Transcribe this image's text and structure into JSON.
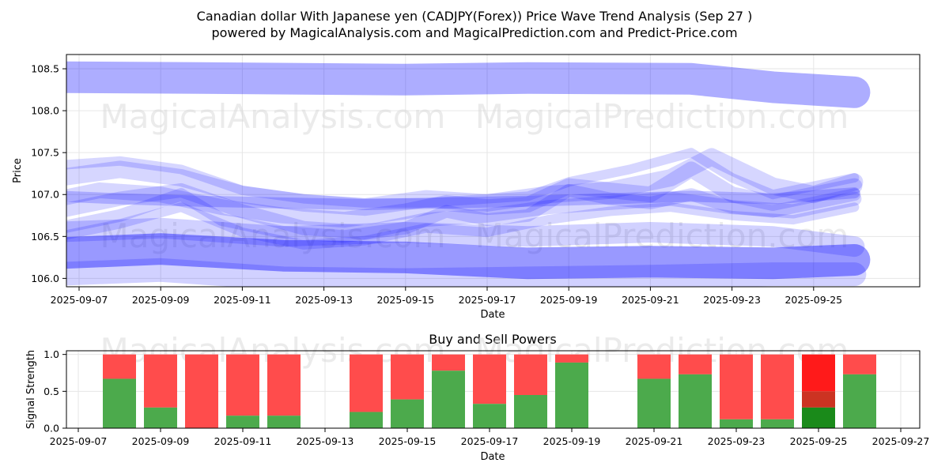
{
  "header": {
    "title_line1": "Canadian dollar With Japanese yen (CADJPY(Forex)) Price Wave Trend Analysis (Sep 27 )",
    "title_line2": "powered by MagicalAnalysis.com and MagicalPrediction.com and Predict-Price.com"
  },
  "watermarks": {
    "top_left": "MagicalAnalysis.com",
    "top_right": "MagicalPrediction.com",
    "mid_left": "MagicalAnalysis.com",
    "mid_right": "MagicalPrediction.com",
    "bottom_left": "MagicalAnalysis.com",
    "bottom_right": "MagicalPrediction.com"
  },
  "colors": {
    "wave": "#0000ff",
    "buy": "#4caa4c",
    "sell": "#ff4c4c",
    "buy_strong": "#1a8a1a",
    "sell_strong": "#ff1a1a",
    "sell_mid": "#cc3322"
  },
  "chart_data": [
    {
      "type": "line",
      "name": "price-wave",
      "xlabel": "Date",
      "ylabel": "Price",
      "x_ticks": [
        "2025-09-07",
        "2025-09-09",
        "2025-09-11",
        "2025-09-13",
        "2025-09-15",
        "2025-09-17",
        "2025-09-19",
        "2025-09-21",
        "2025-09-23",
        "2025-09-25"
      ],
      "y_ticks": [
        "106.0",
        "106.5",
        "107.0",
        "107.5",
        "108.0",
        "108.5"
      ],
      "ylim": [
        105.9,
        108.67
      ],
      "x_range_days": [
        6.3,
        26.5
      ],
      "grid": true,
      "series": [
        {
          "name": "wave-upper",
          "width": 40,
          "opacity": 0.32,
          "x": [
            6.5,
            10,
            15,
            18,
            22,
            24,
            26
          ],
          "y": [
            108.4,
            108.39,
            108.37,
            108.39,
            108.38,
            108.28,
            108.22
          ]
        },
        {
          "name": "wave-lower",
          "width": 40,
          "opacity": 0.4,
          "x": [
            6.5,
            9,
            12,
            15,
            18,
            21,
            24,
            26
          ],
          "y": [
            106.3,
            106.35,
            106.27,
            106.25,
            106.18,
            106.2,
            106.18,
            106.22
          ]
        },
        {
          "name": "wave-lower-2",
          "width": 30,
          "opacity": 0.18,
          "x": [
            6.3,
            9,
            12,
            15,
            18,
            21,
            24,
            26
          ],
          "y": [
            106.05,
            106.1,
            106.0,
            105.98,
            106.0,
            106.02,
            106.05,
            106.05
          ]
        },
        {
          "name": "wave-lower-3",
          "width": 26,
          "opacity": 0.18,
          "x": [
            6.3,
            9,
            12,
            15,
            18,
            21,
            24,
            26
          ],
          "y": [
            106.55,
            106.6,
            106.5,
            106.55,
            106.5,
            106.55,
            106.5,
            106.38
          ]
        },
        {
          "name": "wave-mid-1",
          "width": 20,
          "opacity": 0.16,
          "x": [
            6.5,
            7.5,
            9,
            10.5,
            12,
            13.5,
            15,
            16,
            17,
            18,
            19,
            20,
            21,
            22,
            23,
            24,
            25,
            26
          ],
          "y": [
            106.95,
            107.05,
            107.0,
            106.85,
            106.75,
            106.7,
            106.8,
            106.9,
            106.85,
            106.88,
            107.1,
            107.05,
            107.0,
            107.3,
            107.0,
            106.9,
            107.0,
            107.1
          ]
        },
        {
          "name": "wave-mid-2",
          "width": 22,
          "opacity": 0.16,
          "x": [
            6.5,
            8,
            9.5,
            11,
            12.5,
            14,
            15.5,
            17,
            18.5,
            20,
            21.5,
            22.5,
            24,
            25,
            26
          ],
          "y": [
            107.2,
            107.3,
            107.2,
            107.0,
            106.9,
            106.85,
            106.95,
            106.9,
            107.0,
            107.05,
            107.2,
            107.45,
            107.1,
            107.0,
            107.15
          ]
        },
        {
          "name": "wave-mid-3",
          "width": 18,
          "opacity": 0.16,
          "x": [
            6.5,
            8,
            9.5,
            11,
            12.5,
            14,
            15.5,
            17,
            18.5,
            20,
            21.5,
            23,
            24.5,
            26
          ],
          "y": [
            106.8,
            106.95,
            107.05,
            106.8,
            106.6,
            106.55,
            106.7,
            106.75,
            106.85,
            106.9,
            106.95,
            106.85,
            106.8,
            106.95
          ]
        },
        {
          "name": "wave-mid-4",
          "width": 16,
          "opacity": 0.16,
          "x": [
            6.5,
            8,
            9.5,
            10.5,
            12,
            13.5,
            15,
            16,
            17,
            18,
            19,
            20,
            21,
            22,
            23,
            24,
            25,
            26
          ],
          "y": [
            106.6,
            106.75,
            107.0,
            106.7,
            106.55,
            106.5,
            106.6,
            106.8,
            106.7,
            106.75,
            107.05,
            106.95,
            106.9,
            107.0,
            106.85,
            106.8,
            106.9,
            107.0
          ]
        },
        {
          "name": "wave-mid-5",
          "width": 14,
          "opacity": 0.2,
          "x": [
            6.5,
            8,
            10,
            12,
            14,
            16,
            18,
            20,
            22,
            24,
            26
          ],
          "y": [
            106.98,
            106.95,
            106.92,
            106.9,
            106.88,
            106.9,
            106.92,
            106.95,
            106.98,
            106.95,
            107.02
          ]
        },
        {
          "name": "wave-mid-6",
          "width": 12,
          "opacity": 0.16,
          "x": [
            6.5,
            8,
            9.5,
            11,
            12.5,
            14,
            15.5,
            17,
            18,
            19,
            20.5,
            22,
            23,
            24,
            25,
            26
          ],
          "y": [
            107.35,
            107.4,
            107.3,
            107.05,
            106.95,
            106.9,
            106.9,
            106.95,
            106.98,
            107.15,
            107.3,
            107.5,
            107.2,
            107.0,
            107.1,
            107.2
          ]
        },
        {
          "name": "wave-mid-7",
          "width": 12,
          "opacity": 0.16,
          "x": [
            6.5,
            8,
            9.5,
            11,
            12.5,
            14,
            15.5,
            17,
            18.5,
            20,
            21.5,
            23,
            24.5,
            26
          ],
          "y": [
            106.5,
            106.65,
            106.85,
            106.55,
            106.4,
            106.45,
            106.6,
            106.55,
            106.7,
            106.8,
            106.85,
            106.75,
            106.7,
            106.85
          ]
        }
      ]
    },
    {
      "type": "bar",
      "name": "buy-sell-powers",
      "title": "Buy and Sell Powers",
      "xlabel": "Date",
      "ylabel": "Signal Strength",
      "x_ticks": [
        "2025-09-07",
        "2025-09-09",
        "2025-09-11",
        "2025-09-13",
        "2025-09-15",
        "2025-09-17",
        "2025-09-19",
        "2025-09-21",
        "2025-09-23",
        "2025-09-25",
        "2025-09-27"
      ],
      "y_ticks": [
        "0.0",
        "0.5",
        "1.0"
      ],
      "ylim": [
        0,
        1.05
      ],
      "x_range_days": [
        6.3,
        27.0
      ],
      "grid": true,
      "bars": [
        {
          "day": 8,
          "buy": 0.67
        },
        {
          "day": 9,
          "buy": 0.28
        },
        {
          "day": 10,
          "buy": 0.0
        },
        {
          "day": 11,
          "buy": 0.17
        },
        {
          "day": 12,
          "buy": 0.17
        },
        {
          "day": 14,
          "buy": 0.22
        },
        {
          "day": 15,
          "buy": 0.39
        },
        {
          "day": 16,
          "buy": 0.78
        },
        {
          "day": 17,
          "buy": 0.33
        },
        {
          "day": 18,
          "buy": 0.45
        },
        {
          "day": 19,
          "buy": 0.89
        },
        {
          "day": 21,
          "buy": 0.67
        },
        {
          "day": 22,
          "buy": 0.73
        },
        {
          "day": 23,
          "buy": 0.12
        },
        {
          "day": 24,
          "buy": 0.12
        },
        {
          "day": 25,
          "buy": 0.28,
          "highlight": true
        },
        {
          "day": 26,
          "buy": 0.73
        }
      ]
    }
  ]
}
